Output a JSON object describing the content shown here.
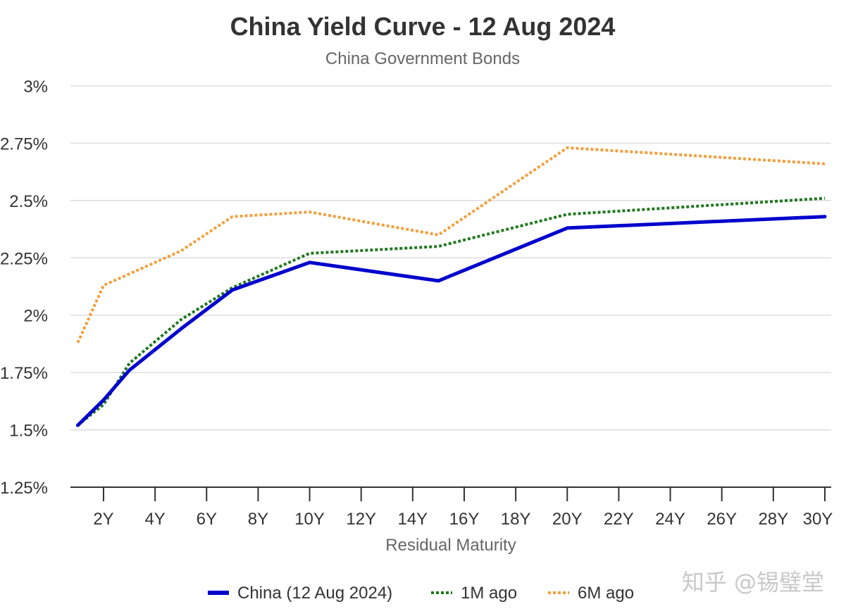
{
  "chart_data": {
    "type": "line",
    "title": "China Yield Curve - 12 Aug 2024",
    "subtitle": "China Government Bonds",
    "xlabel": "Residual Maturity",
    "ylabel": "",
    "xlim": [
      0.75,
      30
    ],
    "ylim": [
      1.25,
      3
    ],
    "yticks": [
      1.25,
      1.5,
      1.75,
      2,
      2.25,
      2.5,
      2.75,
      3
    ],
    "ytick_labels": [
      "1.25%",
      "1.5%",
      "1.75%",
      "2%",
      "2.25%",
      "2.5%",
      "2.75%",
      "3%"
    ],
    "xticks": [
      2,
      4,
      6,
      8,
      10,
      12,
      14,
      16,
      18,
      20,
      22,
      24,
      26,
      28,
      30
    ],
    "xtick_labels": [
      "2Y",
      "4Y",
      "6Y",
      "8Y",
      "10Y",
      "12Y",
      "14Y",
      "16Y",
      "18Y",
      "20Y",
      "22Y",
      "24Y",
      "26Y",
      "28Y",
      "30Y"
    ],
    "grid": true,
    "legend_position": "bottom",
    "series": [
      {
        "name": "China (12 Aug 2024)",
        "color": "#0000cc",
        "style": "solid",
        "x": [
          1,
          2,
          3,
          5,
          7,
          10,
          15,
          20,
          30
        ],
        "y": [
          1.52,
          1.63,
          1.76,
          1.94,
          2.11,
          2.23,
          2.15,
          2.38,
          2.43
        ]
      },
      {
        "name": "1M ago",
        "color": "#227722",
        "style": "dotted",
        "x": [
          1,
          2,
          3,
          5,
          7,
          10,
          15,
          20,
          30
        ],
        "y": [
          1.52,
          1.61,
          1.79,
          1.98,
          2.12,
          2.27,
          2.3,
          2.44,
          2.51
        ]
      },
      {
        "name": "6M ago",
        "color": "#f0a040",
        "style": "dotted",
        "x": [
          1,
          2,
          5,
          7,
          10,
          15,
          20,
          30
        ],
        "y": [
          1.88,
          2.13,
          2.28,
          2.43,
          2.45,
          2.35,
          2.73,
          2.66
        ]
      }
    ]
  },
  "watermark": "知乎 @锡璧堂"
}
